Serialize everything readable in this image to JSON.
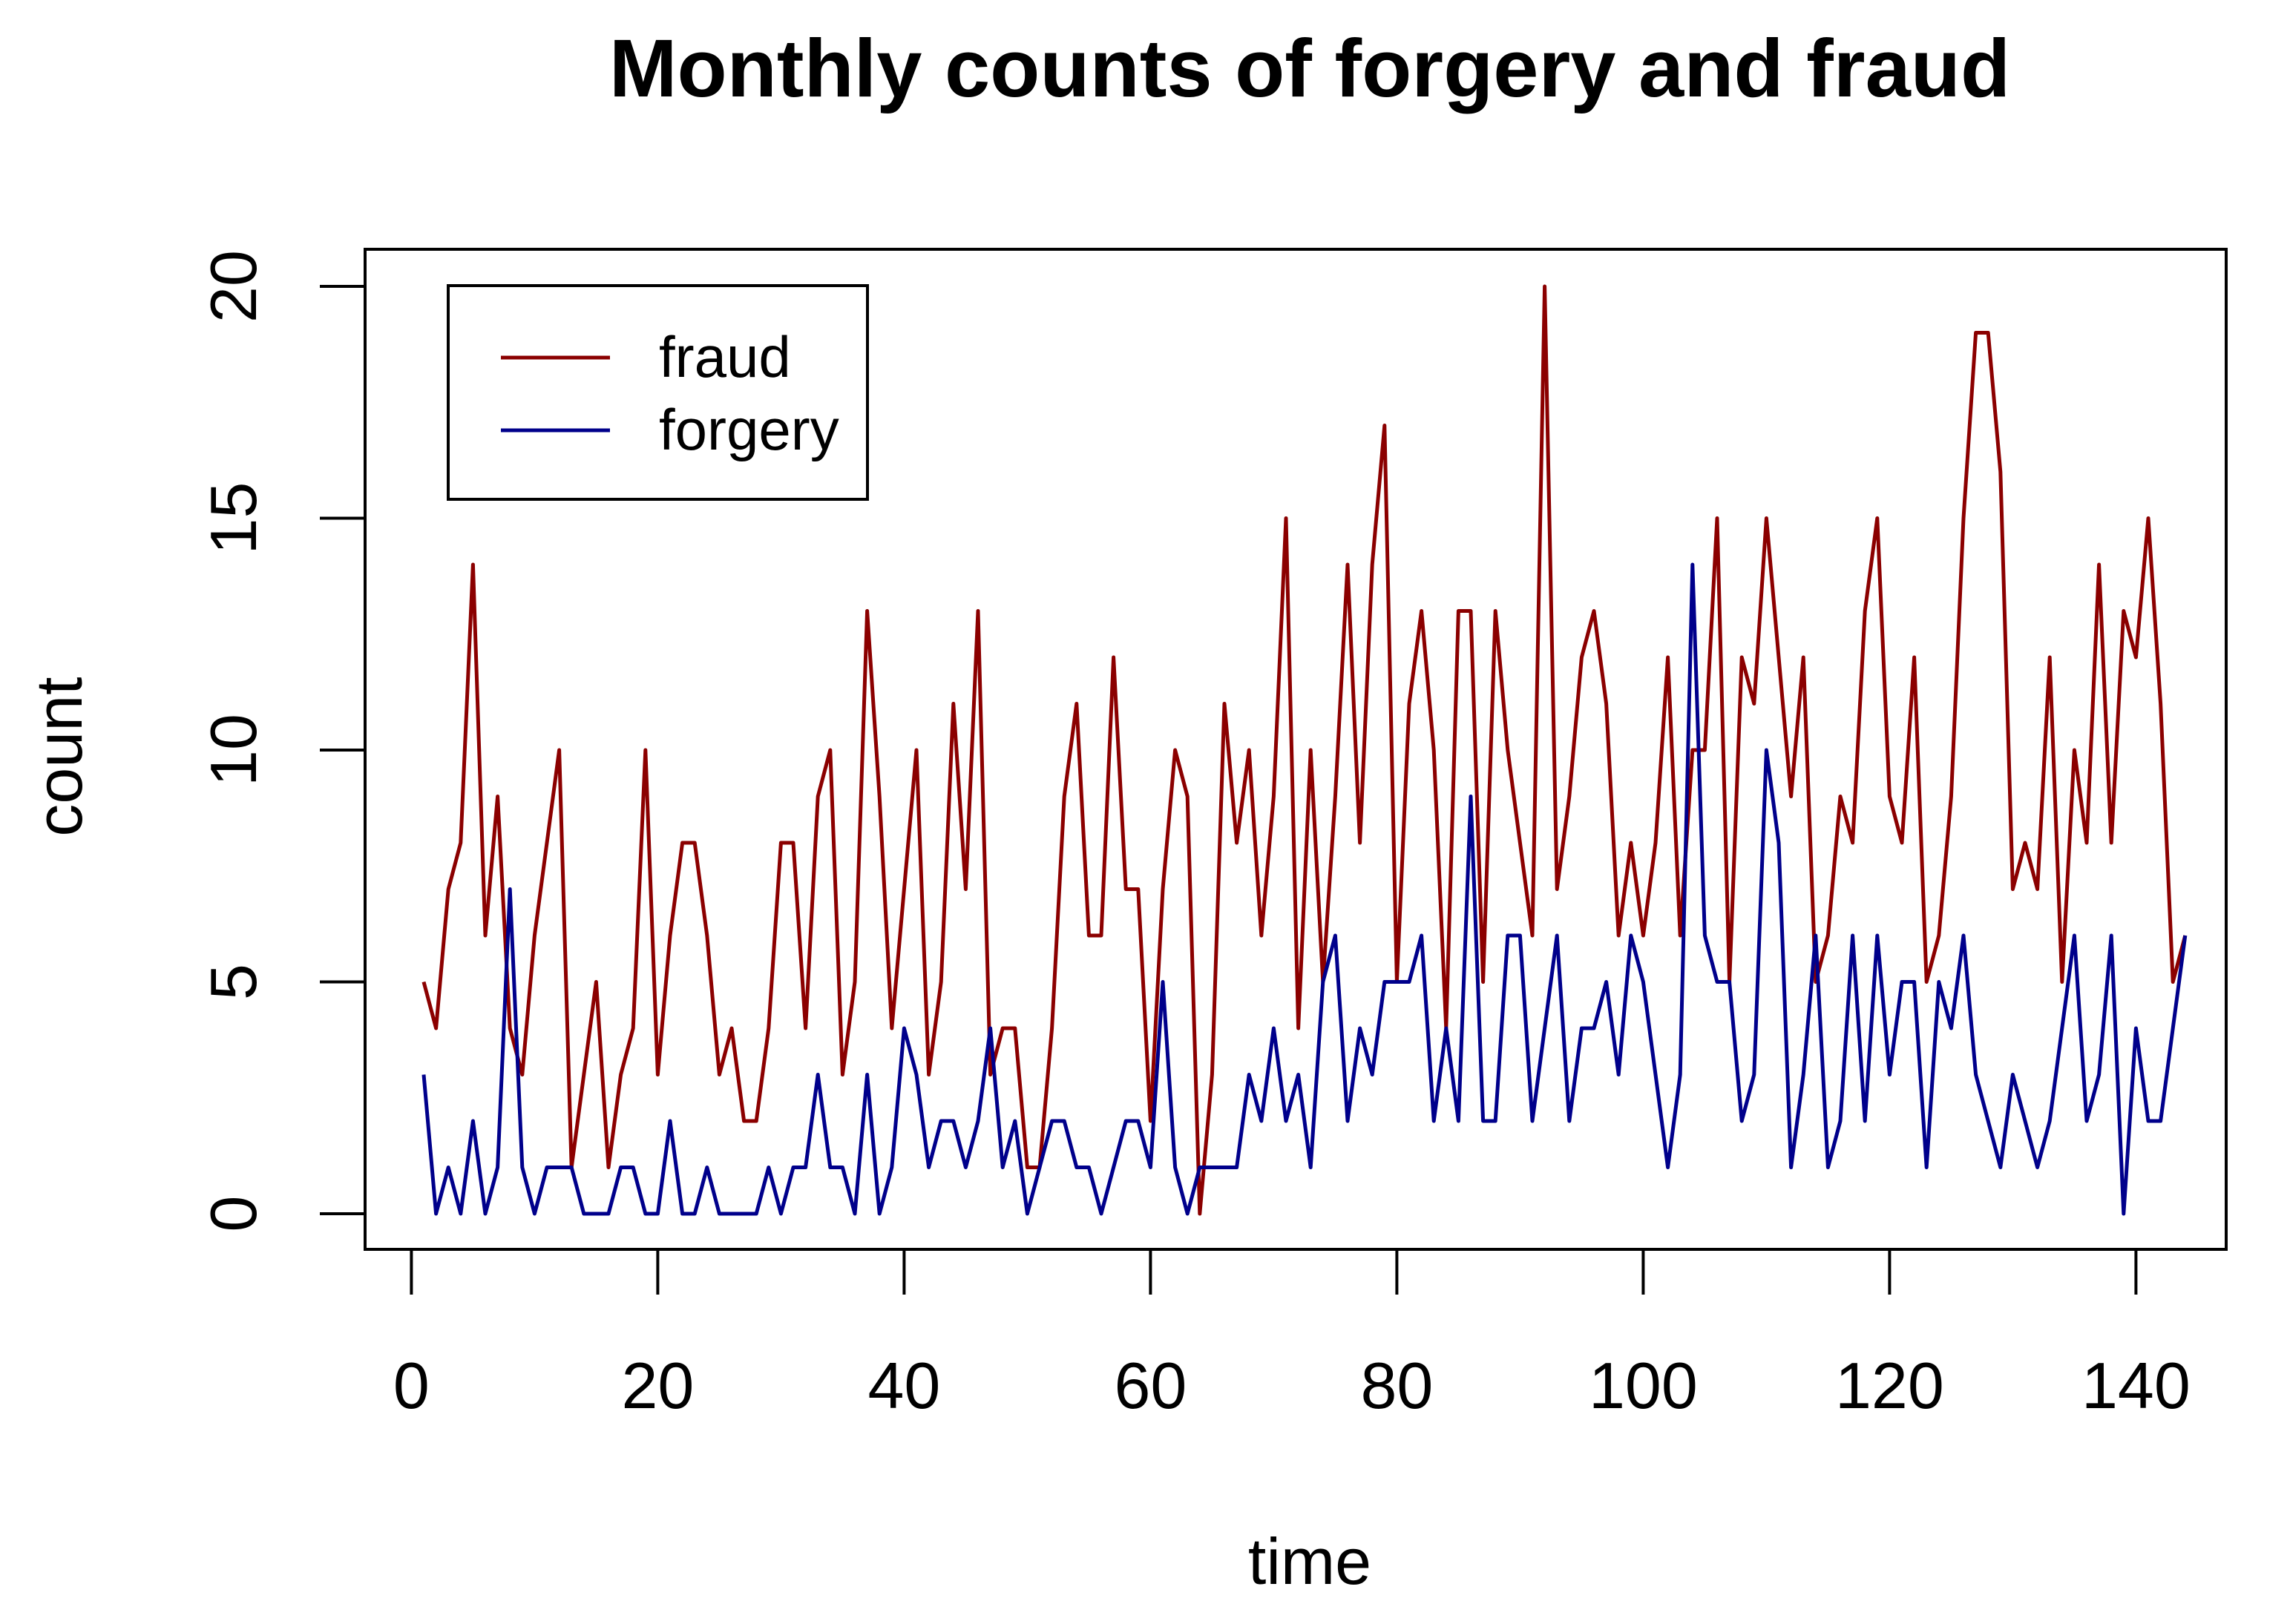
{
  "chart_data": {
    "type": "line",
    "title": "Monthly counts of forgery and fraud",
    "xlabel": "time",
    "ylabel": "count",
    "xlim": [
      1,
      144
    ],
    "ylim": [
      0,
      20
    ],
    "x_ticks": [
      0,
      20,
      40,
      60,
      80,
      100,
      120,
      140
    ],
    "y_ticks": [
      0,
      5,
      10,
      15,
      20
    ],
    "grid": false,
    "legend_position": "top-left",
    "series": [
      {
        "name": "fraud",
        "color": "#8B0000",
        "values": [
          5,
          4,
          7,
          8,
          14,
          6,
          9,
          4,
          3,
          6,
          8,
          10,
          1,
          3,
          5,
          1,
          3,
          4,
          10,
          3,
          6,
          8,
          8,
          6,
          3,
          4,
          2,
          2,
          4,
          8,
          8,
          4,
          9,
          10,
          3,
          5,
          13,
          9,
          4,
          7,
          10,
          3,
          5,
          11,
          7,
          13,
          3,
          4,
          4,
          1,
          1,
          4,
          9,
          11,
          6,
          6,
          12,
          7,
          7,
          2,
          7,
          10,
          9,
          0,
          3,
          11,
          8,
          10,
          6,
          9,
          15,
          4,
          10,
          5,
          9,
          14,
          8,
          14,
          17,
          5,
          11,
          13,
          10,
          4,
          13,
          13,
          5,
          13,
          10,
          8,
          6,
          20,
          7,
          9,
          12,
          13,
          11,
          6,
          8,
          6,
          8,
          12,
          6,
          10,
          10,
          15,
          5,
          12,
          11,
          15,
          12,
          9,
          12,
          5,
          6,
          9,
          8,
          13,
          15,
          9,
          8,
          12,
          5,
          6,
          9,
          15,
          19,
          19,
          16,
          7,
          8,
          7,
          12,
          5,
          10,
          8,
          14,
          8,
          13,
          12,
          15,
          11,
          5,
          6
        ]
      },
      {
        "name": "forgery",
        "color": "#00008B",
        "values": [
          3,
          0,
          1,
          0,
          2,
          0,
          1,
          7,
          1,
          0,
          1,
          1,
          1,
          0,
          0,
          0,
          1,
          1,
          0,
          0,
          2,
          0,
          0,
          1,
          0,
          0,
          0,
          0,
          1,
          0,
          1,
          1,
          3,
          1,
          1,
          0,
          3,
          0,
          1,
          4,
          3,
          1,
          2,
          2,
          1,
          2,
          4,
          1,
          2,
          0,
          1,
          2,
          2,
          1,
          1,
          0,
          1,
          2,
          2,
          1,
          5,
          1,
          0,
          1,
          1,
          1,
          1,
          3,
          2,
          4,
          2,
          3,
          1,
          5,
          6,
          2,
          4,
          3,
          5,
          5,
          5,
          6,
          2,
          4,
          2,
          9,
          2,
          2,
          6,
          6,
          2,
          4,
          6,
          2,
          4,
          4,
          5,
          3,
          6,
          5,
          3,
          1,
          3,
          14,
          6,
          5,
          5,
          2,
          3,
          10,
          8,
          1,
          3,
          6,
          1,
          2,
          6,
          2,
          6,
          3,
          5,
          5,
          1,
          5,
          4,
          6,
          3,
          2,
          1,
          3,
          2,
          1,
          2,
          4,
          6,
          2,
          3,
          6,
          0,
          4,
          2,
          2,
          4,
          6
        ]
      }
    ]
  }
}
